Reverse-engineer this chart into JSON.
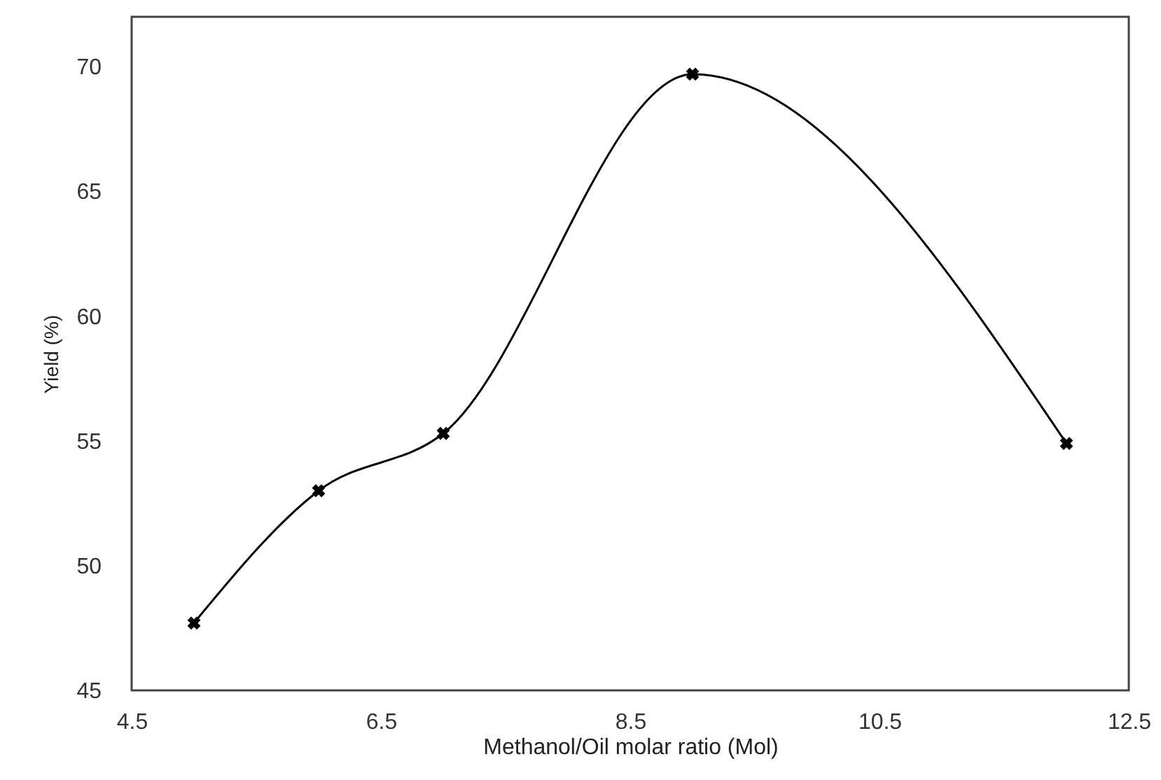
{
  "chart_data": {
    "type": "line",
    "xlabel": "Methanol/Oil molar ratio (Mol)",
    "ylabel": "Yield (%)",
    "x": [
      5,
      6,
      7,
      9,
      12
    ],
    "series": [
      {
        "color": "#000000",
        "values": [
          47.7,
          53.0,
          55.3,
          69.7,
          54.9
        ]
      }
    ],
    "xlim": [
      4.5,
      12.5
    ],
    "xticks": [
      4.5,
      6.5,
      8.5,
      10.5,
      12.5
    ],
    "ylim": [
      45,
      72
    ],
    "yticks": [
      45,
      50,
      55,
      60,
      65,
      70
    ],
    "grid": false,
    "marker": "cross",
    "line_style": "solid"
  }
}
